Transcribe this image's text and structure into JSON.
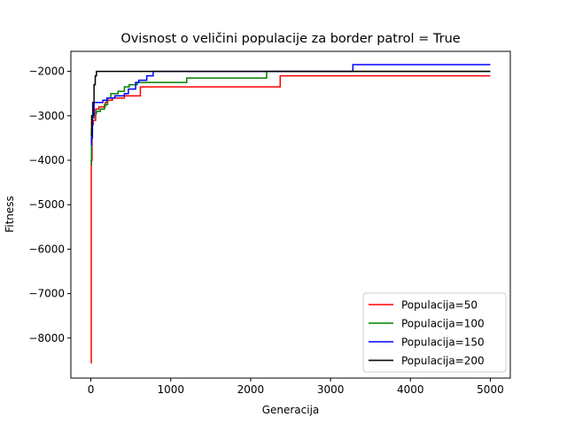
{
  "chart_data": {
    "type": "line",
    "title": "Ovisnost o veličini populacije za border patrol = True",
    "xlabel": "Generacija",
    "ylabel": "Fitness",
    "xlim": [
      -250,
      5250
    ],
    "ylim": [
      -8900,
      -1550
    ],
    "xticks": [
      0,
      1000,
      2000,
      3000,
      4000,
      5000
    ],
    "yticks": [
      -8000,
      -7000,
      -6000,
      -5000,
      -4000,
      -3000,
      -2000
    ],
    "grid": false,
    "legend_position": "lower-right",
    "step": true,
    "series": [
      {
        "name": "Populacija=50",
        "color": "#ff0000",
        "points": [
          [
            0,
            -8560
          ],
          [
            5,
            -4000
          ],
          [
            15,
            -3200
          ],
          [
            30,
            -3100
          ],
          [
            60,
            -2850
          ],
          [
            100,
            -2800
          ],
          [
            180,
            -2700
          ],
          [
            200,
            -2650
          ],
          [
            270,
            -2600
          ],
          [
            420,
            -2550
          ],
          [
            620,
            -2350
          ],
          [
            2370,
            -2100
          ],
          [
            5000,
            -2100
          ]
        ]
      },
      {
        "name": "Populacija=100",
        "color": "#008000",
        "points": [
          [
            0,
            -4100
          ],
          [
            8,
            -3300
          ],
          [
            20,
            -3050
          ],
          [
            40,
            -2950
          ],
          [
            70,
            -2900
          ],
          [
            120,
            -2850
          ],
          [
            170,
            -2750
          ],
          [
            210,
            -2600
          ],
          [
            250,
            -2500
          ],
          [
            340,
            -2450
          ],
          [
            420,
            -2350
          ],
          [
            480,
            -2300
          ],
          [
            580,
            -2250
          ],
          [
            1200,
            -2150
          ],
          [
            2200,
            -2000
          ],
          [
            5000,
            -2000
          ]
        ]
      },
      {
        "name": "Populacija=150",
        "color": "#0000ff",
        "points": [
          [
            0,
            -3650
          ],
          [
            8,
            -3500
          ],
          [
            20,
            -3000
          ],
          [
            40,
            -2700
          ],
          [
            150,
            -2650
          ],
          [
            200,
            -2600
          ],
          [
            300,
            -2550
          ],
          [
            420,
            -2500
          ],
          [
            470,
            -2400
          ],
          [
            560,
            -2250
          ],
          [
            600,
            -2200
          ],
          [
            700,
            -2100
          ],
          [
            780,
            -2000
          ],
          [
            3280,
            -1850
          ],
          [
            5000,
            -1850
          ]
        ]
      },
      {
        "name": "Populacija=200",
        "color": "#000000",
        "points": [
          [
            0,
            -3450
          ],
          [
            10,
            -3000
          ],
          [
            25,
            -2700
          ],
          [
            40,
            -2300
          ],
          [
            55,
            -2100
          ],
          [
            70,
            -2000
          ],
          [
            5000,
            -2000
          ]
        ]
      }
    ]
  }
}
